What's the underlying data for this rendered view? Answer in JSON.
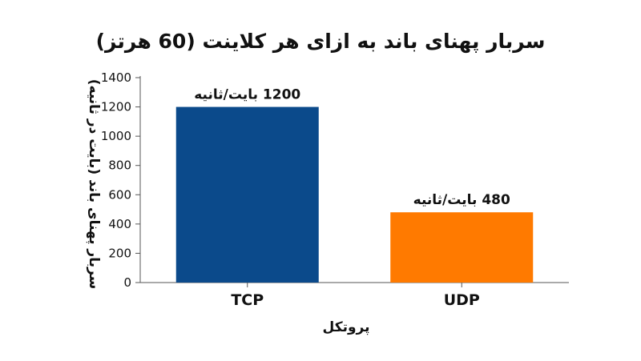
{
  "chart_data": {
    "type": "bar",
    "title": "سربار پهنای باند به ازای هر کلاینت (60 هرتز)",
    "xlabel": "پروتکل",
    "ylabel": "سربار پهنای باند (بایت در ثانیه)",
    "categories": [
      "TCP",
      "UDP"
    ],
    "values": [
      1200,
      480
    ],
    "data_labels": [
      "1200 بایت/ثانیه",
      "480 بایت/ثانیه"
    ],
    "colors": [
      "#0b4a8b",
      "#ff7a00"
    ],
    "ylim": [
      0,
      1400
    ],
    "yticks": [
      0,
      200,
      400,
      600,
      800,
      1000,
      1200,
      1400
    ],
    "grid": false,
    "legend": "none"
  }
}
